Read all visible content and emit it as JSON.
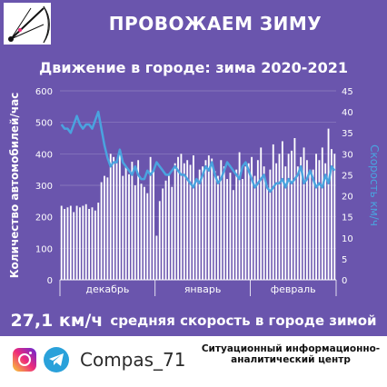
{
  "banner_title": "ПРОВОЖАЕМ ЗИМУ",
  "summary": {
    "value": "27,1 км/ч",
    "text": "средняя скорость в городе зимой"
  },
  "footer": {
    "handle": "Compas_71",
    "organization": "Ситуационный информационно-аналитический центр",
    "icons": [
      "instagram-icon",
      "telegram-icon"
    ]
  },
  "colors": {
    "background": "#6a55ad",
    "bars": "#ffffff",
    "line": "#4aa3df",
    "text": "#ffffff"
  },
  "chart_data": {
    "type": "bar",
    "title": "Движение в городе: зима 2020-2021",
    "ylabel": "Количество автомобилей/час",
    "y2label": "Скорость км/ч",
    "ylim": [
      0,
      600
    ],
    "y2lim": [
      0,
      45
    ],
    "yticks": [
      "0",
      "100",
      "200",
      "300",
      "400",
      "500",
      "600"
    ],
    "y2ticks": [
      "0",
      "5",
      "10",
      "15",
      "20",
      "25",
      "30",
      "35",
      "40",
      "45"
    ],
    "months": [
      "декабрь",
      "январь",
      "февраль"
    ],
    "month_day_counts": [
      31,
      31,
      28
    ],
    "grid": true,
    "series": [
      {
        "kind": "bar",
        "axis": "left",
        "values": [
          235,
          225,
          230,
          235,
          215,
          235,
          230,
          235,
          240,
          225,
          230,
          220,
          245,
          310,
          330,
          325,
          400,
          390,
          375,
          405,
          330,
          360,
          335,
          375,
          300,
          380,
          305,
          295,
          275,
          390,
          345,
          140,
          250,
          290,
          315,
          330,
          295,
          370,
          390,
          400,
          370,
          380,
          365,
          395,
          310,
          350,
          360,
          380,
          395,
          385,
          345,
          330,
          380,
          360,
          320,
          340,
          285,
          350,
          405,
          320,
          360,
          370,
          390,
          330,
          380,
          420,
          360,
          300,
          350,
          430,
          370,
          400,
          440,
          360,
          400,
          410,
          450,
          360,
          390,
          420,
          380,
          350,
          350,
          400,
          380,
          420,
          370,
          480,
          415,
          400
        ]
      },
      {
        "kind": "line",
        "axis": "right",
        "values": [
          37,
          36,
          36,
          35,
          37,
          39,
          37,
          36,
          37,
          37,
          36,
          38,
          40,
          36,
          32,
          29,
          27,
          28,
          28,
          31,
          28,
          27,
          26,
          25,
          27,
          25,
          24,
          24,
          26,
          25,
          26,
          28,
          27,
          26,
          25,
          25,
          26,
          27,
          26,
          25,
          25,
          24,
          23,
          22,
          24,
          23,
          25,
          27,
          26,
          28,
          25,
          23,
          24,
          26,
          28,
          27,
          26,
          25,
          24,
          27,
          28,
          26,
          24,
          22,
          23,
          24,
          25,
          22,
          21,
          22,
          23,
          23,
          24,
          22,
          24,
          23,
          24,
          25,
          27,
          23,
          24,
          26,
          24,
          22,
          23,
          22,
          25,
          23,
          27,
          26
        ]
      }
    ]
  }
}
